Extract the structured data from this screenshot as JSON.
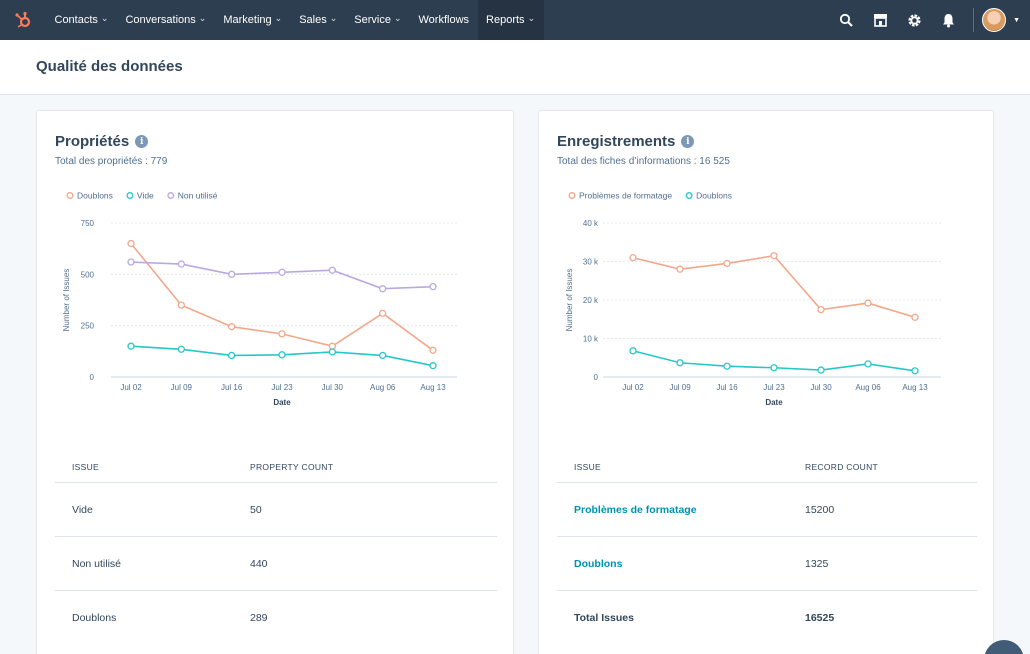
{
  "nav": {
    "items": [
      {
        "label": "Contacts",
        "chevron": true
      },
      {
        "label": "Conversations",
        "chevron": true
      },
      {
        "label": "Marketing",
        "chevron": true
      },
      {
        "label": "Sales",
        "chevron": true
      },
      {
        "label": "Service",
        "chevron": true
      },
      {
        "label": "Workflows",
        "chevron": false
      },
      {
        "label": "Reports",
        "chevron": true,
        "active": true
      }
    ],
    "right_icons": [
      "search-icon",
      "marketplace-icon",
      "settings-icon",
      "notifications-icon"
    ],
    "colors": {
      "bar": "#2d3e50",
      "active": "#253342",
      "logo": "#ff7a59"
    }
  },
  "page": {
    "title": "Qualité des données"
  },
  "left_card": {
    "title": "Propriétés",
    "subtitle": "Total des propriétés : 779",
    "table": {
      "headers": [
        "ISSUE",
        "PROPERTY COUNT"
      ],
      "rows": [
        {
          "issue": "Vide",
          "count": "50"
        },
        {
          "issue": "Non utilisé",
          "count": "440"
        },
        {
          "issue": "Doublons",
          "count": "289"
        }
      ]
    }
  },
  "right_card": {
    "title": "Enregistrements",
    "subtitle": "Total des fiches d’informations : 16 525",
    "table": {
      "headers": [
        "ISSUE",
        "RECORD COUNT"
      ],
      "rows": [
        {
          "issue": "Problèmes de formatage",
          "count": "15200",
          "link": true
        },
        {
          "issue": "Doublons",
          "count": "1325",
          "link": true
        },
        {
          "issue": "Total Issues",
          "count": "16525",
          "bold": true
        }
      ]
    }
  },
  "chart_data": [
    {
      "type": "line",
      "x": [
        "Jul 02",
        "Jul 09",
        "Jul 16",
        "Jul 23",
        "Jul 30",
        "Aug 06",
        "Aug 13"
      ],
      "xlabel": "Date",
      "ylabel": "Number of Issues",
      "ylim": [
        0,
        750
      ],
      "yticks": [
        "0",
        "250",
        "500",
        "750"
      ],
      "ytick_values": [
        0,
        250,
        500,
        750
      ],
      "grid": true,
      "legend_position": "top-left",
      "series": [
        {
          "name": "Doublons",
          "color": "#f2a78a",
          "values": [
            650,
            350,
            245,
            210,
            150,
            310,
            130
          ]
        },
        {
          "name": "Vide",
          "color": "#27c7c9",
          "values": [
            150,
            135,
            105,
            108,
            122,
            105,
            55
          ]
        },
        {
          "name": "Non utilisé",
          "color": "#b9a9e0",
          "values": [
            560,
            550,
            500,
            510,
            520,
            430,
            440
          ]
        }
      ]
    },
    {
      "type": "line",
      "x": [
        "Jul 02",
        "Jul 09",
        "Jul 16",
        "Jul 23",
        "Jul 30",
        "Aug 06",
        "Aug 13"
      ],
      "xlabel": "Date",
      "ylabel": "Number of Issues",
      "ylim": [
        0,
        40000
      ],
      "yticks": [
        "0",
        "10 k",
        "20 k",
        "30 k",
        "40 k"
      ],
      "ytick_values": [
        0,
        10000,
        20000,
        30000,
        40000
      ],
      "grid": true,
      "legend_position": "top-left",
      "series": [
        {
          "name": "Problèmes de formatage",
          "color": "#f2a78a",
          "values": [
            31000,
            28000,
            29500,
            31500,
            17500,
            19200,
            15500
          ]
        },
        {
          "name": "Doublons",
          "color": "#27c7c9",
          "values": [
            6800,
            3700,
            2800,
            2400,
            1800,
            3400,
            1600
          ]
        }
      ]
    }
  ]
}
